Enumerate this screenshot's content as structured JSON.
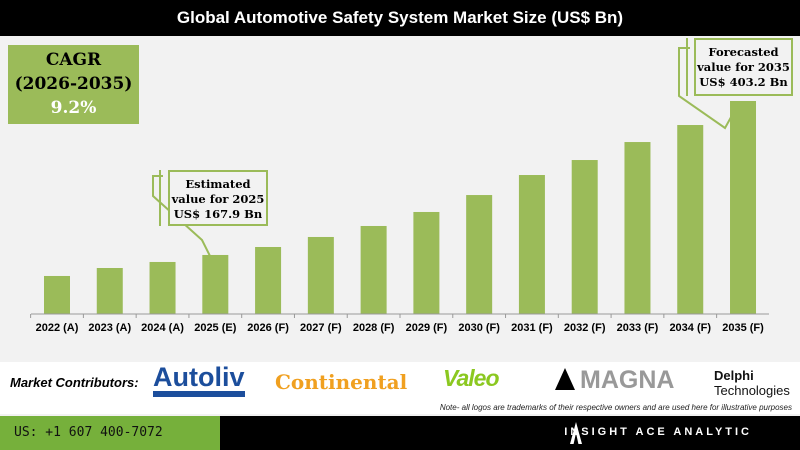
{
  "header": {
    "title": "Global Automotive Safety System Market Size (US$ Bn)"
  },
  "cagr": {
    "label": "CAGR",
    "period": "(2026-2035)",
    "value": "9.2%"
  },
  "callouts": {
    "estimated": {
      "line1": "Estimated",
      "line2": "value for 2025",
      "line3": "US$ 167.9 Bn"
    },
    "forecast": {
      "line1": "Forecasted",
      "line2": "value for 2035",
      "line3": "US$ 403.2 Bn"
    }
  },
  "chart_data": {
    "type": "bar",
    "title": "Global Automotive Safety System Market Size (US$ Bn)",
    "categories": [
      "2022 (A)",
      "2023 (A)",
      "2024 (A)",
      "2025 (E)",
      "2026 (F)",
      "2027 (F)",
      "2028 (F)",
      "2029 (F)",
      "2030 (F)",
      "2031 (F)",
      "2032 (F)",
      "2033 (F)",
      "2034 (F)",
      "2035 (F)"
    ],
    "values": [
      135.8,
      148.0,
      157.2,
      167.9,
      180.1,
      195.4,
      212.2,
      233.6,
      259.5,
      290.1,
      313.0,
      340.5,
      366.5,
      403.2
    ],
    "ylim": [
      77.7,
      420
    ],
    "grid": false,
    "bar_color": "#9bbb59"
  },
  "contributors": {
    "label": "Market Contributors:",
    "logos": [
      "Autoliv",
      "Continental",
      "Valeo",
      "MAGNA",
      "Delphi",
      "Technologies"
    ],
    "note": "Note- all logos are trademarks of their respective owners and are used here for illustrative purposes"
  },
  "footer": {
    "phone": "US: +1 607 400-7072",
    "brand": "INSIGHT ACE ANALYTIC"
  },
  "colors": {
    "accent": "#9bbb59",
    "footer_green": "#76b03b"
  }
}
